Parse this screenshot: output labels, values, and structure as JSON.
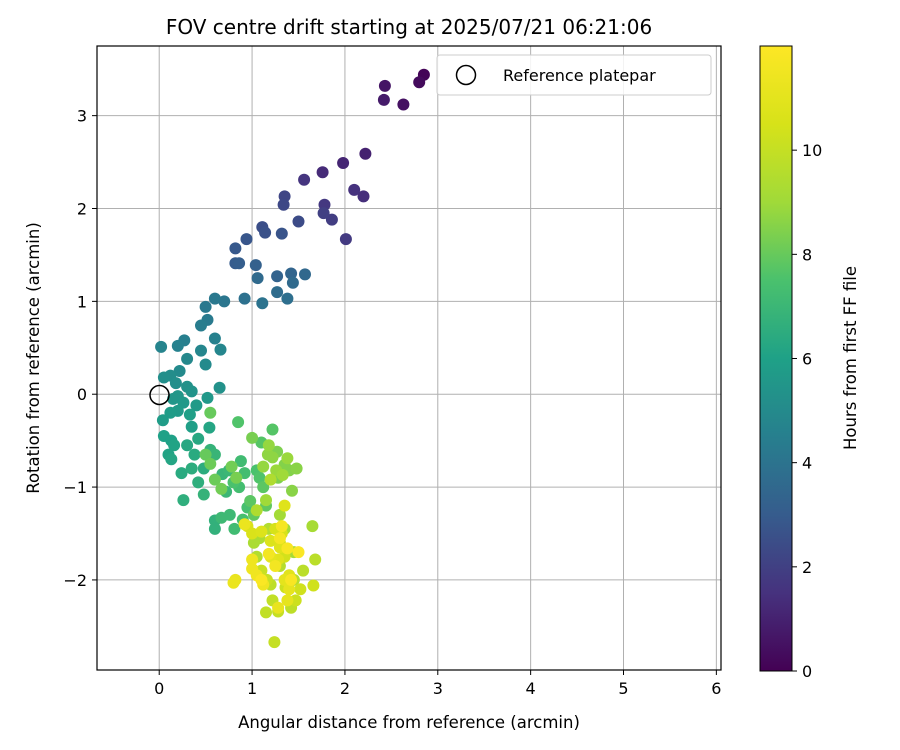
{
  "chart_data": {
    "type": "scatter",
    "title": "FOV centre drift starting at 2025/07/21 06:21:06",
    "xlabel": "Angular distance from reference (arcmin)",
    "ylabel": "Rotation from reference (arcmin)",
    "xlim": [
      -0.67,
      6.05
    ],
    "ylim": [
      -2.97,
      3.75
    ],
    "xticks": [
      "0",
      "1",
      "2",
      "3",
      "4",
      "5",
      "6"
    ],
    "yticks": [
      "−2",
      "−1",
      "0",
      "1",
      "2",
      "3"
    ],
    "grid": true,
    "legend": {
      "position": "top-right",
      "entries": [
        "Reference platepar"
      ]
    },
    "colorbar": {
      "label": "Hours from first FF file",
      "colormap": "viridis",
      "range": [
        0,
        12
      ],
      "ticks": [
        "0",
        "2",
        "4",
        "6",
        "8",
        "10"
      ]
    },
    "reference_point": {
      "x": 0,
      "y": 0,
      "marker": "open-circle",
      "color": "#000000"
    },
    "series": [
      {
        "marker": "filled-circle",
        "color_by": "hours",
        "points": [
          [
            2.85,
            3.44,
            0.1
          ],
          [
            2.8,
            3.36,
            0.3
          ],
          [
            2.63,
            3.12,
            0.5
          ],
          [
            2.43,
            3.32,
            0.6
          ],
          [
            2.42,
            3.17,
            0.8
          ],
          [
            2.22,
            2.59,
            1.0
          ],
          [
            1.98,
            2.49,
            1.1
          ],
          [
            1.76,
            2.39,
            1.3
          ],
          [
            2.2,
            2.13,
            1.4
          ],
          [
            2.1,
            2.2,
            1.5
          ],
          [
            1.56,
            2.31,
            1.6
          ],
          [
            1.78,
            2.04,
            1.7
          ],
          [
            2.01,
            1.67,
            1.8
          ],
          [
            1.86,
            1.88,
            1.9
          ],
          [
            1.77,
            1.95,
            2.0
          ],
          [
            1.35,
            2.13,
            2.2
          ],
          [
            1.34,
            2.04,
            2.3
          ],
          [
            1.5,
            1.86,
            2.4
          ],
          [
            1.11,
            1.8,
            2.5
          ],
          [
            1.14,
            1.74,
            2.6
          ],
          [
            1.32,
            1.73,
            2.7
          ],
          [
            0.94,
            1.67,
            2.8
          ],
          [
            0.82,
            1.57,
            2.9
          ],
          [
            0.82,
            1.41,
            3.0
          ],
          [
            0.86,
            1.41,
            3.1
          ],
          [
            1.04,
            1.39,
            3.2
          ],
          [
            1.27,
            1.27,
            3.3
          ],
          [
            1.42,
            1.3,
            3.4
          ],
          [
            1.57,
            1.29,
            3.5
          ],
          [
            1.06,
            1.25,
            3.6
          ],
          [
            1.44,
            1.2,
            3.6
          ],
          [
            1.27,
            1.1,
            3.7
          ],
          [
            1.38,
            1.03,
            3.8
          ],
          [
            0.92,
            1.03,
            3.9
          ],
          [
            1.11,
            0.98,
            4.0
          ],
          [
            0.7,
            1.0,
            4.1
          ],
          [
            0.6,
            1.03,
            4.2
          ],
          [
            0.5,
            0.94,
            4.2
          ],
          [
            0.52,
            0.8,
            4.3
          ],
          [
            0.45,
            0.74,
            4.4
          ],
          [
            0.27,
            0.58,
            4.5
          ],
          [
            0.6,
            0.6,
            4.6
          ],
          [
            0.2,
            0.52,
            4.6
          ],
          [
            0.02,
            0.51,
            4.7
          ],
          [
            0.45,
            0.47,
            4.8
          ],
          [
            0.66,
            0.48,
            4.8
          ],
          [
            0.3,
            0.38,
            4.9
          ],
          [
            0.5,
            0.32,
            5.0
          ],
          [
            0.22,
            0.25,
            5.0
          ],
          [
            0.12,
            0.2,
            5.1
          ],
          [
            0.05,
            0.18,
            5.2
          ],
          [
            0.18,
            0.12,
            5.2
          ],
          [
            0.3,
            0.08,
            5.3
          ],
          [
            0.65,
            0.07,
            5.3
          ],
          [
            0.35,
            0.03,
            5.4
          ],
          [
            0.2,
            -0.02,
            5.5
          ],
          [
            0.15,
            -0.05,
            5.5
          ],
          [
            0.26,
            -0.09,
            5.6
          ],
          [
            0.52,
            -0.04,
            5.6
          ],
          [
            0.4,
            -0.12,
            5.7
          ],
          [
            0.2,
            -0.18,
            5.7
          ],
          [
            0.12,
            -0.2,
            5.8
          ],
          [
            0.04,
            -0.28,
            5.8
          ],
          [
            0.33,
            -0.22,
            5.9
          ],
          [
            0.35,
            -0.35,
            5.9
          ],
          [
            0.05,
            -0.45,
            6.0
          ],
          [
            0.13,
            -0.5,
            6.0
          ],
          [
            0.16,
            -0.55,
            6.1
          ],
          [
            0.1,
            -0.65,
            6.1
          ],
          [
            0.13,
            -0.7,
            6.2
          ],
          [
            0.54,
            -0.36,
            6.2
          ],
          [
            0.42,
            -0.48,
            6.3
          ],
          [
            0.3,
            -0.55,
            6.3
          ],
          [
            0.38,
            -0.65,
            6.4
          ],
          [
            0.24,
            -0.85,
            6.4
          ],
          [
            0.48,
            -0.8,
            6.5
          ],
          [
            0.35,
            -0.8,
            6.5
          ],
          [
            0.42,
            -0.95,
            6.6
          ],
          [
            0.26,
            -1.14,
            6.6
          ],
          [
            0.6,
            -1.36,
            6.7
          ],
          [
            0.6,
            -1.45,
            6.7
          ],
          [
            0.48,
            -1.08,
            6.8
          ],
          [
            0.55,
            -0.6,
            6.8
          ],
          [
            0.6,
            -0.65,
            6.9
          ],
          [
            0.68,
            -0.86,
            6.9
          ],
          [
            0.75,
            -0.82,
            7.0
          ],
          [
            0.72,
            -1.05,
            7.0
          ],
          [
            0.67,
            -1.33,
            7.1
          ],
          [
            0.76,
            -1.3,
            7.1
          ],
          [
            0.81,
            -1.45,
            7.2
          ],
          [
            0.88,
            -0.72,
            7.2
          ],
          [
            0.92,
            -0.85,
            7.3
          ],
          [
            0.86,
            -1.0,
            7.3
          ],
          [
            0.9,
            -1.35,
            7.4
          ],
          [
            0.95,
            -1.22,
            7.4
          ],
          [
            0.8,
            -0.95,
            7.5
          ],
          [
            1.05,
            -0.82,
            7.5
          ],
          [
            1.08,
            -0.9,
            7.6
          ],
          [
            0.85,
            -0.3,
            7.6
          ],
          [
            1.22,
            -0.38,
            7.7
          ],
          [
            1.1,
            -0.52,
            7.7
          ],
          [
            0.98,
            -1.15,
            7.8
          ],
          [
            1.12,
            -1.0,
            7.8
          ],
          [
            1.15,
            -1.2,
            7.9
          ],
          [
            1.02,
            -1.3,
            7.9
          ],
          [
            0.55,
            -0.2,
            8.0
          ],
          [
            0.5,
            -0.65,
            8.0
          ],
          [
            0.55,
            -0.75,
            8.1
          ],
          [
            0.6,
            -0.92,
            8.1
          ],
          [
            0.67,
            -1.02,
            8.2
          ],
          [
            0.78,
            -0.78,
            8.2
          ],
          [
            0.83,
            -0.9,
            8.3
          ],
          [
            1.0,
            -0.47,
            8.3
          ],
          [
            1.27,
            -0.62,
            8.4
          ],
          [
            1.28,
            -0.9,
            8.4
          ],
          [
            1.35,
            -0.76,
            8.5
          ],
          [
            1.4,
            -0.82,
            8.5
          ],
          [
            1.48,
            -0.8,
            8.6
          ],
          [
            1.43,
            -1.04,
            8.6
          ],
          [
            1.17,
            -0.65,
            8.7
          ],
          [
            1.22,
            -0.68,
            8.7
          ],
          [
            1.12,
            -0.78,
            8.8
          ],
          [
            1.18,
            -0.55,
            8.8
          ],
          [
            1.26,
            -0.82,
            8.9
          ],
          [
            1.38,
            -0.69,
            8.9
          ],
          [
            1.33,
            -0.87,
            9.0
          ],
          [
            1.15,
            -1.14,
            9.0
          ],
          [
            1.3,
            -1.3,
            9.1
          ],
          [
            1.35,
            -1.45,
            9.1
          ],
          [
            1.45,
            -1.7,
            9.2
          ],
          [
            1.65,
            -1.42,
            9.2
          ],
          [
            1.08,
            -1.55,
            9.3
          ],
          [
            1.02,
            -1.6,
            9.3
          ],
          [
            1.2,
            -0.92,
            9.4
          ],
          [
            1.05,
            -1.25,
            9.4
          ],
          [
            1.18,
            -1.45,
            9.5
          ],
          [
            1.05,
            -1.75,
            9.5
          ],
          [
            1.3,
            -1.85,
            9.6
          ],
          [
            1.45,
            -2.0,
            9.6
          ],
          [
            1.55,
            -1.9,
            9.7
          ],
          [
            1.68,
            -1.78,
            9.7
          ],
          [
            1.42,
            -2.3,
            9.8
          ],
          [
            1.2,
            -2.05,
            9.8
          ],
          [
            1.15,
            -2.35,
            9.9
          ],
          [
            1.22,
            -2.22,
            9.9
          ],
          [
            1.24,
            -2.67,
            10.0
          ],
          [
            1.28,
            -2.34,
            10.0
          ],
          [
            1.1,
            -1.9,
            10.1
          ],
          [
            1.16,
            -2.0,
            10.1
          ],
          [
            1.36,
            -2.08,
            10.2
          ],
          [
            1.47,
            -2.22,
            10.2
          ],
          [
            1.52,
            -2.1,
            10.3
          ],
          [
            1.66,
            -2.06,
            10.3
          ],
          [
            1.3,
            -1.6,
            10.4
          ],
          [
            1.35,
            -1.75,
            10.4
          ],
          [
            1.25,
            -1.45,
            10.5
          ],
          [
            1.32,
            -1.5,
            10.5
          ],
          [
            0.95,
            -1.42,
            10.6
          ],
          [
            1.0,
            -1.5,
            10.6
          ],
          [
            1.1,
            -1.48,
            10.7
          ],
          [
            1.2,
            -1.58,
            10.7
          ],
          [
            1.3,
            -1.65,
            10.8
          ],
          [
            1.35,
            -1.2,
            10.8
          ],
          [
            1.4,
            -1.95,
            10.9
          ],
          [
            1.28,
            -1.78,
            10.9
          ],
          [
            1.2,
            -1.75,
            11.0
          ],
          [
            1.35,
            -2.0,
            11.0
          ],
          [
            1.4,
            -2.1,
            11.1
          ],
          [
            1.38,
            -2.22,
            11.1
          ],
          [
            1.28,
            -2.3,
            11.2
          ],
          [
            0.82,
            -2.0,
            11.2
          ],
          [
            0.8,
            -2.03,
            11.3
          ],
          [
            0.92,
            -1.4,
            11.3
          ],
          [
            1.0,
            -1.78,
            11.4
          ],
          [
            1.0,
            -1.88,
            11.4
          ],
          [
            1.05,
            -1.95,
            11.5
          ],
          [
            1.12,
            -2.05,
            11.5
          ],
          [
            1.18,
            -1.72,
            11.6
          ],
          [
            1.25,
            -1.85,
            11.6
          ],
          [
            1.3,
            -1.55,
            11.7
          ],
          [
            1.32,
            -1.42,
            11.7
          ],
          [
            1.38,
            -1.66,
            11.8
          ],
          [
            1.42,
            -2.0,
            11.8
          ],
          [
            1.5,
            -1.7,
            11.9
          ],
          [
            1.1,
            -2.0,
            11.9
          ]
        ]
      }
    ]
  }
}
